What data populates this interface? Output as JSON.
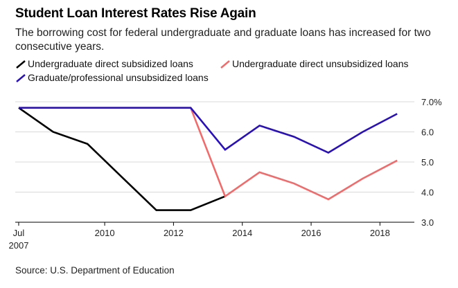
{
  "title": "Student Loan Interest Rates Rise Again",
  "subtitle": "The borrowing cost for federal undergraduate and graduate loans has increased for two consecutive years.",
  "source": "Source: U.S. Department of Education",
  "chart_data": {
    "type": "line",
    "title": "Student Loan Interest Rates Rise Again",
    "subtitle": "The borrowing cost for federal undergraduate and graduate loans has increased for two consecutive years.",
    "xlabel": "",
    "ylabel": "",
    "x_ticks": [
      {
        "value": 2007.5,
        "label": "Jul",
        "label2": "2007"
      },
      {
        "value": 2010,
        "label": "2010"
      },
      {
        "value": 2012,
        "label": "2012"
      },
      {
        "value": 2014,
        "label": "2014"
      },
      {
        "value": 2016,
        "label": "2016"
      },
      {
        "value": 2018,
        "label": "2018"
      }
    ],
    "y_ticks": [
      {
        "value": 7.0,
        "label": "7.0%"
      },
      {
        "value": 6.0,
        "label": "6.0"
      },
      {
        "value": 5.0,
        "label": "5.0"
      },
      {
        "value": 4.0,
        "label": "4.0"
      },
      {
        "value": 3.0,
        "label": "3.0"
      }
    ],
    "xlim": [
      2007.4,
      2019.0
    ],
    "ylim": [
      3.0,
      7.0
    ],
    "grid": "horizontal",
    "y_axis_side": "right",
    "legend_position": "top",
    "series": [
      {
        "name": "Undergraduate direct subsidized loans",
        "color": "#000000",
        "x": [
          2007.5,
          2008.5,
          2009.5,
          2010.5,
          2011.5,
          2012.5,
          2013.5
        ],
        "y": [
          6.8,
          6.0,
          5.6,
          4.5,
          3.4,
          3.4,
          3.86
        ]
      },
      {
        "name": "Undergraduate direct unsubsidized loans",
        "color": "#f06b6b",
        "x": [
          2012.5,
          2013.5,
          2014.5,
          2015.5,
          2016.5,
          2017.5,
          2018.5
        ],
        "y": [
          6.8,
          3.86,
          4.66,
          4.29,
          3.76,
          4.45,
          5.05
        ]
      },
      {
        "name": "Graduate/professional unsubsidized loans",
        "color": "#2a10b8",
        "x": [
          2007.5,
          2008.5,
          2009.5,
          2010.5,
          2011.5,
          2012.5,
          2013.5,
          2014.5,
          2015.5,
          2016.5,
          2017.5,
          2018.5
        ],
        "y": [
          6.8,
          6.8,
          6.8,
          6.8,
          6.8,
          6.8,
          5.41,
          6.21,
          5.84,
          5.31,
          6.0,
          6.6
        ]
      }
    ]
  }
}
